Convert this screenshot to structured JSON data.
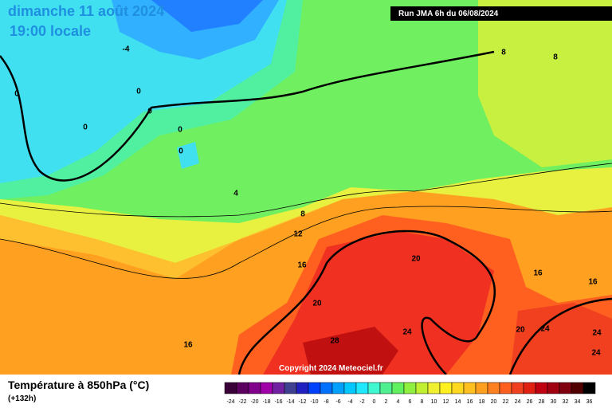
{
  "map": {
    "title": "dimanche 11 août 2024",
    "subtitle": "19:00 locale",
    "run": "Run JMA 6h du 06/08/2024",
    "copyright": "Copyright 2024 Meteociel.fr",
    "contour_labels": [
      "-4",
      "8",
      "8",
      "0",
      "0",
      "0",
      "0",
      "0",
      "0",
      "4",
      "8",
      "12",
      "16",
      "20",
      "20",
      "24",
      "28",
      "16",
      "16",
      "16",
      "20",
      "24",
      "24",
      "24"
    ]
  },
  "legend": {
    "title": "Température à 850hPa (°C)",
    "lead_time": "(+132h)",
    "ticks": [
      -24,
      -22,
      -20,
      -18,
      -16,
      -14,
      -12,
      -10,
      -8,
      -6,
      -4,
      -2,
      0,
      2,
      4,
      6,
      8,
      10,
      12,
      14,
      16,
      18,
      20,
      22,
      24,
      26,
      28,
      30,
      32,
      34,
      36
    ],
    "colors": [
      "#3a0038",
      "#5c0060",
      "#80008c",
      "#a000a8",
      "#7020a0",
      "#404090",
      "#2020c0",
      "#0040ff",
      "#0070ff",
      "#00a0ff",
      "#00c8ff",
      "#20e8ff",
      "#40f8d0",
      "#50f090",
      "#60f060",
      "#90f040",
      "#c0f030",
      "#f0f030",
      "#fff020",
      "#ffd820",
      "#ffc020",
      "#ffa020",
      "#ff8020",
      "#ff6020",
      "#f04020",
      "#e02010",
      "#c00010",
      "#a00010",
      "#800010",
      "#500000",
      "#000000"
    ]
  }
}
